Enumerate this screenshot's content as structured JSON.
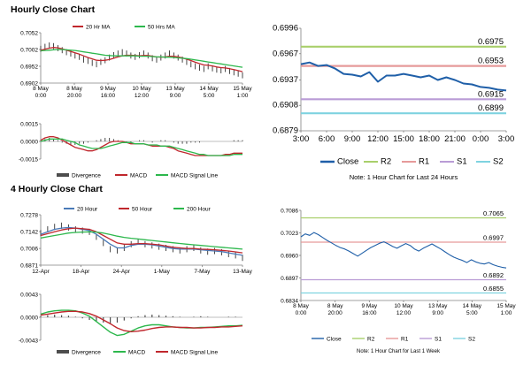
{
  "page": {
    "hourly_title": "Hourly Close Chart",
    "four_hourly_title": "4 Hourly Close Chart"
  },
  "colors": {
    "close": "#1f5fa8",
    "ma_red": "#c0272d",
    "ma_green": "#2db84d",
    "ma_blue": "#4a7ab8",
    "r2": "#a9cf6b",
    "r1": "#e69a9a",
    "s1": "#b99cd6",
    "s2": "#7fd3e0",
    "bar": "#4d4d4d",
    "axis": "#808080"
  },
  "chart_data": [
    {
      "id": "hourly_price",
      "type": "line",
      "legend": [
        "20 Hr MA",
        "50 Hrs MA"
      ],
      "x_tick_labels": [
        [
          "8 May",
          "0:00"
        ],
        [
          "8 May",
          "20:00"
        ],
        [
          "9 May",
          "16:00"
        ],
        [
          "10 May",
          "12:00"
        ],
        [
          "13 May",
          "9:00"
        ],
        [
          "14 May",
          "5:00"
        ],
        [
          "15 May",
          "1:00"
        ]
      ],
      "y_tick_labels": [
        "0.7052",
        "0.7002",
        "0.6952",
        "0.6902"
      ],
      "ylim": [
        0.6902,
        0.7052
      ],
      "series": [
        {
          "name": "Close",
          "values": [
            0.7004,
            0.701,
            0.7014,
            0.7012,
            0.7006,
            0.7,
            0.6994,
            0.699,
            0.6984,
            0.698,
            0.6972,
            0.6968,
            0.6962,
            0.6958,
            0.6965,
            0.697,
            0.6978,
            0.6985,
            0.699,
            0.6994,
            0.699,
            0.6984,
            0.698,
            0.6985,
            0.699,
            0.6984,
            0.6976,
            0.6972,
            0.6978,
            0.6984,
            0.699,
            0.6984,
            0.6978,
            0.6972,
            0.6965,
            0.6958,
            0.6952,
            0.6948,
            0.6944,
            0.6952,
            0.6946,
            0.6942,
            0.694,
            0.6944,
            0.6938,
            0.6934,
            0.693,
            0.6925
          ]
        },
        {
          "name": "20 Hr MA",
          "values": [
            0.7,
            0.7003,
            0.7006,
            0.7008,
            0.7007,
            0.7004,
            0.7,
            0.6996,
            0.6992,
            0.6988,
            0.6983,
            0.6978,
            0.6974,
            0.697,
            0.6969,
            0.697,
            0.6972,
            0.6976,
            0.698,
            0.6983,
            0.6985,
            0.6985,
            0.6984,
            0.6983,
            0.6984,
            0.6984,
            0.6982,
            0.698,
            0.6979,
            0.698,
            0.6982,
            0.6982,
            0.698,
            0.6977,
            0.6973,
            0.6969,
            0.6964,
            0.696,
            0.6956,
            0.6955,
            0.6953,
            0.695,
            0.6948,
            0.6947,
            0.6945,
            0.6942,
            0.6939,
            0.6936
          ]
        },
        {
          "name": "50 Hrs MA",
          "values": [
            0.6998,
            0.6999,
            0.7,
            0.7001,
            0.7002,
            0.7002,
            0.7001,
            0.7,
            0.6999,
            0.6997,
            0.6995,
            0.6993,
            0.6991,
            0.6989,
            0.6987,
            0.6985,
            0.6984,
            0.6983,
            0.6983,
            0.6983,
            0.6983,
            0.6983,
            0.6983,
            0.6982,
            0.6982,
            0.6982,
            0.6981,
            0.698,
            0.698,
            0.6979,
            0.6979,
            0.6978,
            0.6977,
            0.6976,
            0.6975,
            0.6973,
            0.6971,
            0.6969,
            0.6967,
            0.6965,
            0.6963,
            0.6961,
            0.6959,
            0.6957,
            0.6955,
            0.6953,
            0.6951,
            0.6949
          ]
        }
      ]
    },
    {
      "id": "hourly_macd",
      "type": "line",
      "legend": [
        "Divergence",
        "MACD",
        "MACD Signal Line"
      ],
      "y_tick_labels": [
        "0.0015",
        "0.0000",
        "-0.0015"
      ],
      "ylim": [
        -0.0015,
        0.0015
      ],
      "series": [
        {
          "name": "Divergence",
          "values": [
            0.0001,
            0.0002,
            0.0003,
            0.0002,
            0.0001,
            -0.0001,
            -0.0002,
            -0.0003,
            -0.0003,
            -0.0002,
            -0.0002,
            -0.0001,
            0.0,
            0.0001,
            0.0002,
            0.0003,
            0.0003,
            0.0002,
            0.0001,
            0.0,
            -0.0001,
            -0.0001,
            0.0,
            0.0001,
            0.0001,
            0.0,
            -0.0001,
            0.0,
            0.0001,
            0.0001,
            0.0,
            -0.0001,
            -0.0002,
            -0.0002,
            -0.0002,
            -0.0001,
            -0.0001,
            -0.0001,
            0.0,
            0.0,
            0.0,
            0.0,
            0.0,
            0.0,
            0.0,
            0.0001,
            0.0001,
            0.0001
          ]
        },
        {
          "name": "MACD",
          "values": [
            0.0001,
            0.0003,
            0.0004,
            0.0004,
            0.0003,
            0.0001,
            -0.0001,
            -0.0003,
            -0.0005,
            -0.0006,
            -0.0007,
            -0.0008,
            -0.0008,
            -0.0007,
            -0.0005,
            -0.0003,
            -0.0001,
            0.0,
            0.0,
            0.0,
            -0.0001,
            -0.0002,
            -0.0002,
            -0.0002,
            -0.0002,
            -0.0003,
            -0.0004,
            -0.0004,
            -0.0004,
            -0.0004,
            -0.0005,
            -0.0006,
            -0.0008,
            -0.0009,
            -0.001,
            -0.0011,
            -0.0012,
            -0.0012,
            -0.0012,
            -0.0012,
            -0.0012,
            -0.0012,
            -0.0012,
            -0.0011,
            -0.0011,
            -0.001,
            -0.001,
            -0.001
          ]
        },
        {
          "name": "MACD Signal Line",
          "values": [
            0.0,
            0.0001,
            0.0002,
            0.0002,
            0.0002,
            0.0002,
            0.0001,
            0.0,
            -0.0001,
            -0.0003,
            -0.0004,
            -0.0005,
            -0.0006,
            -0.0006,
            -0.0006,
            -0.0005,
            -0.0004,
            -0.0003,
            -0.0002,
            -0.0001,
            -0.0001,
            -0.0001,
            -0.0002,
            -0.0002,
            -0.0002,
            -0.0003,
            -0.0003,
            -0.0003,
            -0.0004,
            -0.0004,
            -0.0004,
            -0.0005,
            -0.0006,
            -0.0007,
            -0.0008,
            -0.0009,
            -0.001,
            -0.0011,
            -0.0011,
            -0.0012,
            -0.0012,
            -0.0012,
            -0.0012,
            -0.0012,
            -0.0012,
            -0.0011,
            -0.0011,
            -0.0011
          ]
        }
      ]
    },
    {
      "id": "hourly_levels",
      "type": "line",
      "note": "Note: 1 Hour Chart for Last 24 Hours",
      "legend": [
        "Close",
        "R2",
        "R1",
        "S1",
        "S2"
      ],
      "x_tick_labels": [
        "3:00",
        "6:00",
        "9:00",
        "12:00",
        "15:00",
        "18:00",
        "21:00",
        "0:00",
        "3:00"
      ],
      "y_tick_labels": [
        "0.6996",
        "0.6967",
        "0.6937",
        "0.6908",
        "0.6879"
      ],
      "ylim": [
        0.6879,
        0.6996
      ],
      "levels": [
        {
          "name": "R2",
          "value": 0.6975,
          "label": "0.6975"
        },
        {
          "name": "R1",
          "value": 0.6953,
          "label": "0.6953"
        },
        {
          "name": "S1",
          "value": 0.6915,
          "label": "0.6915"
        },
        {
          "name": "S2",
          "value": 0.6899,
          "label": "0.6899"
        }
      ],
      "series": [
        {
          "name": "Close",
          "values": [
            0.6955,
            0.6957,
            0.6953,
            0.6954,
            0.695,
            0.6944,
            0.6943,
            0.6941,
            0.6946,
            0.6935,
            0.6942,
            0.6942,
            0.6944,
            0.6942,
            0.694,
            0.6942,
            0.6937,
            0.694,
            0.6937,
            0.6933,
            0.6932,
            0.6929,
            0.6928,
            0.6926,
            0.6925
          ]
        }
      ]
    },
    {
      "id": "four_hourly_price",
      "type": "line",
      "legend": [
        "20 Hour",
        "50 Hour",
        "200 Hour"
      ],
      "x_tick_labels": [
        "12-Apr",
        "18-Apr",
        "24-Apr",
        "1-May",
        "7-May",
        "13-May"
      ],
      "y_tick_labels": [
        "0.7278",
        "0.7142",
        "0.7006",
        "0.6871"
      ],
      "ylim": [
        0.6871,
        0.7278
      ],
      "series": [
        {
          "name": "Close",
          "values": [
            0.713,
            0.716,
            0.718,
            0.719,
            0.7175,
            0.716,
            0.715,
            0.714,
            0.71,
            0.705,
            0.7,
            0.699,
            0.701,
            0.704,
            0.706,
            0.704,
            0.703,
            0.702,
            0.701,
            0.7,
            0.699,
            0.7,
            0.701,
            0.699,
            0.698,
            0.6985,
            0.6975,
            0.696,
            0.695,
            0.693
          ]
        },
        {
          "name": "20 Hour",
          "values": [
            0.712,
            0.714,
            0.716,
            0.717,
            0.7175,
            0.717,
            0.716,
            0.715,
            0.712,
            0.708,
            0.704,
            0.701,
            0.701,
            0.703,
            0.704,
            0.704,
            0.7035,
            0.7025,
            0.7015,
            0.7005,
            0.7,
            0.7,
            0.7,
            0.6995,
            0.699,
            0.6985,
            0.698,
            0.697,
            0.696,
            0.695
          ]
        },
        {
          "name": "50 Hour",
          "values": [
            0.711,
            0.7125,
            0.714,
            0.7155,
            0.7165,
            0.717,
            0.7165,
            0.716,
            0.714,
            0.711,
            0.708,
            0.705,
            0.704,
            0.704,
            0.7045,
            0.7045,
            0.704,
            0.7035,
            0.7025,
            0.7015,
            0.701,
            0.7005,
            0.7005,
            0.7,
            0.6998,
            0.6995,
            0.699,
            0.6985,
            0.6978,
            0.697
          ]
        },
        {
          "name": "200 Hour",
          "values": [
            0.709,
            0.71,
            0.711,
            0.712,
            0.713,
            0.7135,
            0.7138,
            0.714,
            0.7138,
            0.713,
            0.7118,
            0.7105,
            0.7095,
            0.7088,
            0.7082,
            0.7076,
            0.707,
            0.7064,
            0.7058,
            0.7052,
            0.7046,
            0.704,
            0.7035,
            0.703,
            0.7025,
            0.702,
            0.7015,
            0.701,
            0.7005,
            0.7
          ]
        }
      ]
    },
    {
      "id": "four_hourly_macd",
      "type": "line",
      "legend": [
        "Divergence",
        "MACD",
        "MACD Signal Line"
      ],
      "y_tick_labels": [
        "0.0043",
        "0.0000",
        "-0.0043"
      ],
      "ylim": [
        -0.0043,
        0.0043
      ],
      "series": [
        {
          "name": "Divergence",
          "values": [
            0.0002,
            0.0004,
            0.0005,
            0.0004,
            0.0003,
            0.0001,
            -0.0002,
            -0.0005,
            -0.0008,
            -0.001,
            -0.0012,
            -0.001,
            -0.0006,
            -0.0002,
            0.0002,
            0.0004,
            0.0005,
            0.0004,
            0.0003,
            0.0002,
            0.0001,
            0.0,
            0.0001,
            0.0002,
            0.0001,
            0.0,
            0.0,
            0.0001,
            0.0001,
            0.0
          ]
        },
        {
          "name": "MACD",
          "values": [
            0.0006,
            0.001,
            0.0012,
            0.0013,
            0.0013,
            0.0012,
            0.0008,
            0.0002,
            -0.0008,
            -0.0018,
            -0.0028,
            -0.0034,
            -0.0032,
            -0.0026,
            -0.002,
            -0.0016,
            -0.0014,
            -0.0014,
            -0.0016,
            -0.0018,
            -0.0019,
            -0.002,
            -0.002,
            -0.0019,
            -0.0019,
            -0.0018,
            -0.0017,
            -0.0016,
            -0.0016,
            -0.0015
          ]
        },
        {
          "name": "MACD Signal Line",
          "values": [
            0.0004,
            0.0006,
            0.0008,
            0.001,
            0.0011,
            0.0011,
            0.001,
            0.0007,
            0.0002,
            -0.0005,
            -0.0012,
            -0.002,
            -0.0025,
            -0.0027,
            -0.0026,
            -0.0024,
            -0.0021,
            -0.0019,
            -0.0018,
            -0.0018,
            -0.0019,
            -0.0019,
            -0.002,
            -0.002,
            -0.0019,
            -0.0019,
            -0.0018,
            -0.0018,
            -0.0017,
            -0.0016
          ]
        }
      ]
    },
    {
      "id": "four_hourly_levels",
      "type": "line",
      "note": "Note: 1 Hour Chart for Last 1 Week",
      "legend": [
        "Close",
        "R2",
        "R1",
        "S1",
        "S2"
      ],
      "x_tick_labels": [
        [
          "8 May",
          "0:00"
        ],
        [
          "8 May",
          "20:00"
        ],
        [
          "9 May",
          "16:00"
        ],
        [
          "10 May",
          "12:00"
        ],
        [
          "13 May",
          "9:00"
        ],
        [
          "14 May",
          "5:00"
        ],
        [
          "15 May",
          "1:00"
        ]
      ],
      "y_tick_labels": [
        "0.7086",
        "0.7023",
        "0.6960",
        "0.6897",
        "0.6834"
      ],
      "ylim": [
        0.6834,
        0.7086
      ],
      "levels": [
        {
          "name": "R2",
          "value": 0.7065,
          "label": "0.7065"
        },
        {
          "name": "R1",
          "value": 0.6997,
          "label": "0.6997"
        },
        {
          "name": "S1",
          "value": 0.6892,
          "label": "0.6892"
        },
        {
          "name": "S2",
          "value": 0.6855,
          "label": "0.6855"
        }
      ],
      "series": [
        {
          "name": "Close",
          "values": [
            0.7012,
            0.702,
            0.7016,
            0.7024,
            0.7018,
            0.701,
            0.7002,
            0.6995,
            0.6988,
            0.6982,
            0.6978,
            0.6972,
            0.6965,
            0.6958,
            0.6966,
            0.6974,
            0.6982,
            0.6988,
            0.6994,
            0.6998,
            0.6992,
            0.6985,
            0.698,
            0.6987,
            0.6993,
            0.6988,
            0.6978,
            0.6972,
            0.698,
            0.6986,
            0.6992,
            0.6985,
            0.6978,
            0.697,
            0.6962,
            0.6955,
            0.695,
            0.6946,
            0.694,
            0.6948,
            0.6942,
            0.6938,
            0.6936,
            0.694,
            0.6934,
            0.693,
            0.6927,
            0.6925
          ]
        }
      ]
    }
  ]
}
